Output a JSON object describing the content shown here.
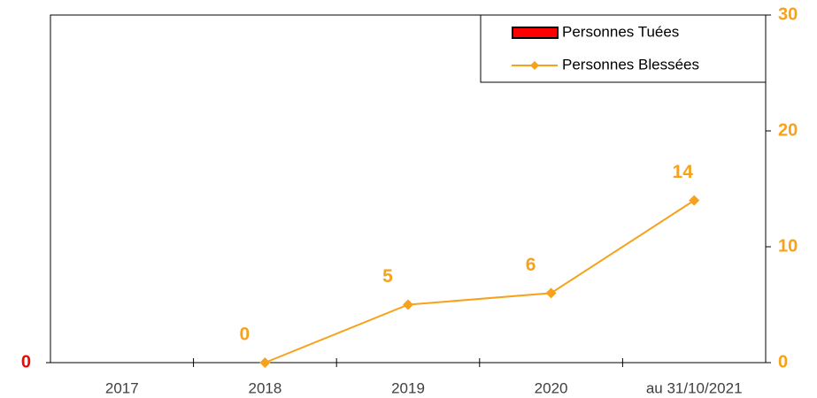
{
  "chart_data": {
    "type": "combo",
    "categories": [
      "2017",
      "2018",
      "2019",
      "2020",
      "au 31/10/2021"
    ],
    "series": [
      {
        "name": "Personnes Tuées",
        "type": "bar",
        "color": "#ff0000",
        "values": [
          0,
          0,
          0,
          0,
          0
        ]
      },
      {
        "name": "Personnes Blessées",
        "type": "line",
        "axis": "y2",
        "color": "#f7a21b",
        "values": [
          null,
          0,
          5,
          6,
          14
        ]
      }
    ],
    "ylim": [
      0,
      30
    ],
    "yticks": [
      0
    ],
    "y2lim": [
      0,
      30
    ],
    "y2ticks": [
      0,
      10,
      20,
      30
    ],
    "legend": "top-right",
    "data_labels": true
  }
}
